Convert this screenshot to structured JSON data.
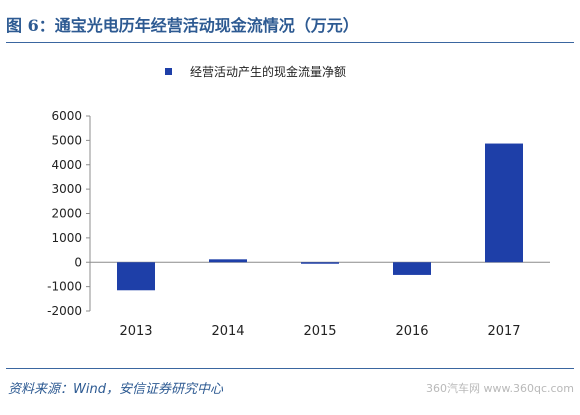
{
  "header": {
    "title": "图 6：通宝光电历年经营活动现金流情况（万元）"
  },
  "footer": {
    "source": "资料来源：Wind，安信证券研究中心",
    "watermark": "360汽车网 www.360qc.com"
  },
  "colors": {
    "accent": "#2d5a92",
    "bar": "#1e3fa8",
    "axis": "#8c8c8c"
  },
  "chart_data": {
    "type": "bar",
    "title": "",
    "xlabel": "",
    "ylabel": "",
    "categories": [
      "2013",
      "2014",
      "2015",
      "2016",
      "2017"
    ],
    "series": [
      {
        "name": "经营活动产生的现金流量净额",
        "values": [
          -1150,
          120,
          -40,
          -520,
          4870
        ]
      }
    ],
    "ylim": [
      -2000,
      6000
    ],
    "yticks": [
      -2000,
      -1000,
      0,
      1000,
      2000,
      3000,
      4000,
      5000,
      6000
    ],
    "ytick_labels": [
      "-2000",
      "-1000",
      "0",
      "1000",
      "2000",
      "3000",
      "4000",
      "5000",
      "6000"
    ],
    "grid": false,
    "legend_position": "top-center"
  }
}
